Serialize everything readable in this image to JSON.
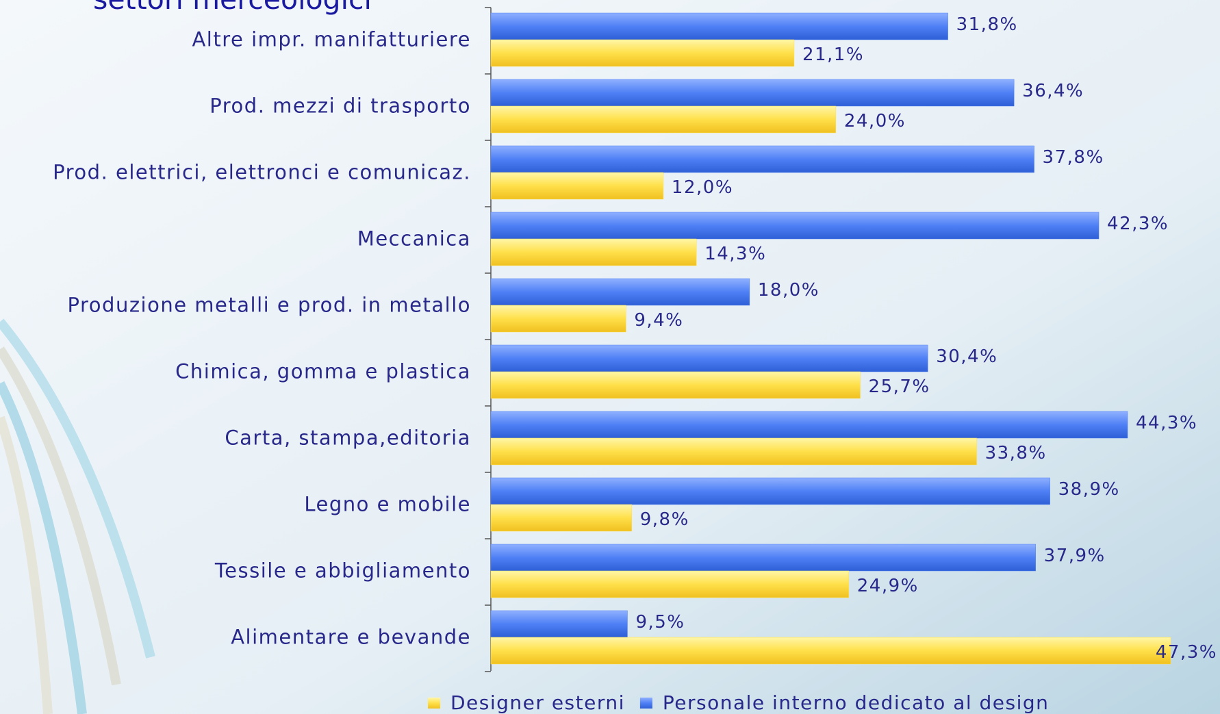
{
  "chart_data": {
    "type": "bar",
    "orientation": "horizontal",
    "title": "settori merceologici",
    "categories": [
      "Altre impr. manifatturiere",
      "Prod. mezzi di trasporto",
      "Prod. elettrici, elettronci e comunicaz.",
      "Meccanica",
      "Produzione metalli e prod. in metallo",
      "Chimica, gomma e plastica",
      "Carta, stampa,editoria",
      "Legno e mobile",
      "Tessile e abbigliamento",
      "Alimentare e bevande"
    ],
    "series": [
      {
        "name": "Designer esterni",
        "color": "#ffe04a",
        "values": [
          21.1,
          24.0,
          12.0,
          14.3,
          9.4,
          25.7,
          33.8,
          9.8,
          24.9,
          47.3
        ],
        "value_labels": [
          "21,1%",
          "24,0%",
          "12,0%",
          "14,3%",
          "9,4%",
          "25,7%",
          "33,8%",
          "9,8%",
          "24,9%",
          "47,3%"
        ]
      },
      {
        "name": "Personale interno dedicato al design",
        "color": "#4f80f5",
        "values": [
          31.8,
          36.4,
          37.8,
          42.3,
          18.0,
          30.4,
          44.3,
          38.9,
          37.9,
          9.5
        ],
        "value_labels": [
          "31,8%",
          "36,4%",
          "37,8%",
          "42,3%",
          "18,0%",
          "30,4%",
          "44,3%",
          "38,9%",
          "37,9%",
          "9,5%"
        ]
      }
    ],
    "legend": "bottom"
  }
}
